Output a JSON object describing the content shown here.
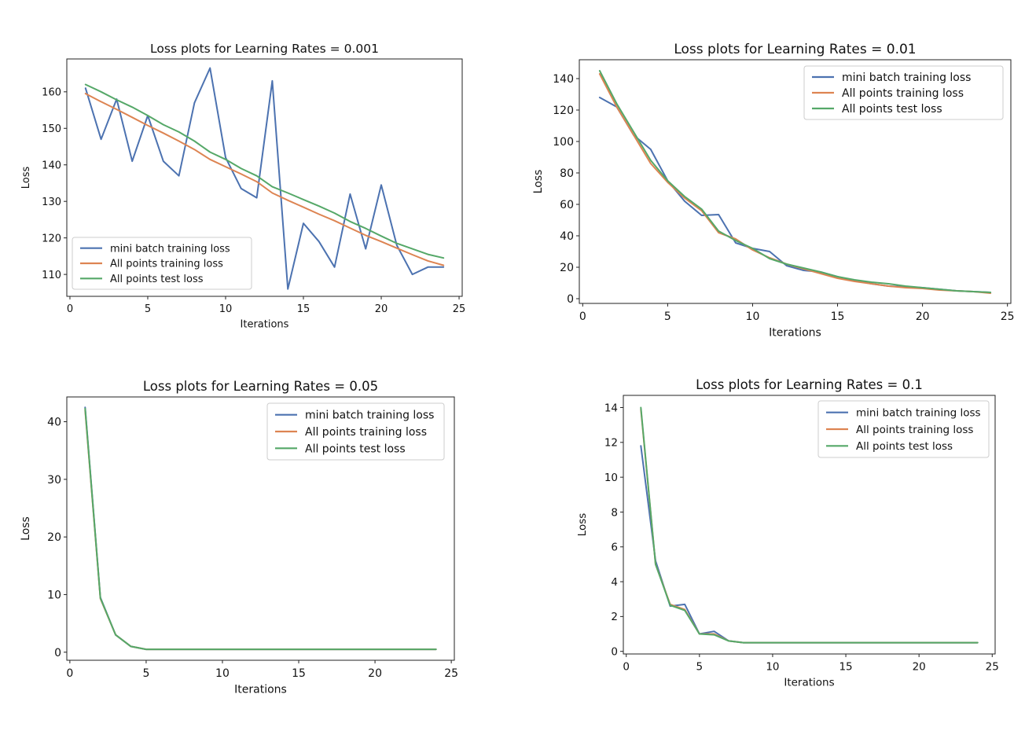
{
  "chart_data": [
    {
      "type": "line",
      "title": "Loss plots for Learning Rates = 0.001",
      "xlabel": "Iterations",
      "ylabel": "Loss",
      "xlim": [
        -0.2,
        25.2
      ],
      "ylim": [
        104,
        169
      ],
      "xticks": [
        0,
        5,
        10,
        15,
        20,
        25
      ],
      "yticks": [
        110,
        120,
        130,
        140,
        150,
        160
      ],
      "legend_loc": "lower-left",
      "grid": false,
      "x": [
        1,
        2,
        3,
        4,
        5,
        6,
        7,
        8,
        9,
        10,
        11,
        12,
        13,
        14,
        15,
        16,
        17,
        18,
        19,
        20,
        21,
        22,
        23,
        24
      ],
      "series": [
        {
          "name": "mini batch training loss",
          "color": "#4c72b0",
          "values": [
            161,
            147,
            158,
            141,
            153.5,
            141,
            137,
            157,
            166.5,
            142,
            133.5,
            131,
            163,
            106,
            124,
            119,
            112,
            132,
            117,
            134.5,
            118,
            110,
            112,
            112
          ]
        },
        {
          "name": "All points training loss",
          "color": "#dd8452",
          "values": [
            159.5,
            157.3,
            155.2,
            153,
            150.8,
            148.7,
            146.5,
            144.2,
            141.5,
            139.5,
            137.5,
            135.4,
            132.3,
            130.3,
            128.4,
            126.5,
            124.7,
            122.7,
            120.7,
            119,
            117.2,
            115.4,
            113.7,
            112.5
          ]
        },
        {
          "name": "All points test loss",
          "color": "#55a868",
          "values": [
            162,
            160,
            157.8,
            155.8,
            153.5,
            151,
            149,
            146.5,
            143.5,
            141.5,
            139,
            137,
            134,
            132.3,
            130.5,
            128.7,
            126.8,
            124.5,
            122.6,
            120.5,
            118.5,
            117,
            115.5,
            114.5
          ]
        }
      ]
    },
    {
      "type": "line",
      "title": "Loss plots for Learning Rates = 0.01",
      "xlabel": "Iterations",
      "ylabel": "Loss",
      "xlim": [
        -0.2,
        25.2
      ],
      "ylim": [
        -3,
        152
      ],
      "xticks": [
        0,
        5,
        10,
        15,
        20,
        25
      ],
      "yticks": [
        0,
        20,
        40,
        60,
        80,
        100,
        120,
        140
      ],
      "legend_loc": "top-right",
      "grid": false,
      "x": [
        1,
        2,
        3,
        4,
        5,
        6,
        7,
        8,
        9,
        10,
        11,
        12,
        13,
        14,
        15,
        16,
        17,
        18,
        19,
        20,
        21,
        22,
        23,
        24
      ],
      "series": [
        {
          "name": "mini batch training loss",
          "color": "#4c72b0",
          "values": [
            128,
            122,
            104,
            95,
            75,
            62,
            53,
            53.5,
            35.5,
            32,
            30,
            21,
            18,
            17,
            14,
            11.5,
            9.5,
            8,
            7.5,
            7,
            6,
            5,
            4.5,
            4
          ]
        },
        {
          "name": "All points training loss",
          "color": "#dd8452",
          "values": [
            143,
            122,
            104,
            86,
            74,
            64,
            56,
            42,
            38,
            31,
            26,
            22,
            19,
            16,
            13,
            11,
            9.5,
            8,
            7,
            6.5,
            5.5,
            5,
            4.5,
            3.5
          ]
        },
        {
          "name": "All points test loss",
          "color": "#55a868",
          "values": [
            145,
            124,
            106,
            88,
            75,
            65,
            57,
            43,
            37,
            32,
            25.5,
            22,
            19.5,
            17,
            14,
            12,
            10.5,
            9.5,
            8,
            7,
            6,
            5,
            4.5,
            4
          ]
        }
      ]
    },
    {
      "type": "line",
      "title": "Loss plots for Learning Rates = 0.05",
      "xlabel": "Iterations",
      "ylabel": "Loss",
      "xlim": [
        -0.2,
        25.2
      ],
      "ylim": [
        -1.4,
        44.3
      ],
      "xticks": [
        0,
        5,
        10,
        15,
        20,
        25
      ],
      "yticks": [
        0,
        10,
        20,
        30,
        40
      ],
      "legend_loc": "top-right",
      "grid": false,
      "x": [
        1,
        2,
        3,
        4,
        5,
        6,
        7,
        8,
        9,
        10,
        11,
        12,
        13,
        14,
        15,
        16,
        17,
        18,
        19,
        20,
        21,
        22,
        23,
        24
      ],
      "series": [
        {
          "name": "mini batch training loss",
          "color": "#4c72b0",
          "values": [
            42.5,
            9.5,
            3,
            1,
            0.5,
            0.5,
            0.5,
            0.5,
            0.5,
            0.5,
            0.5,
            0.5,
            0.5,
            0.5,
            0.5,
            0.5,
            0.5,
            0.5,
            0.5,
            0.5,
            0.5,
            0.5,
            0.5,
            0.5
          ]
        },
        {
          "name": "All points training loss",
          "color": "#dd8452",
          "values": [
            42,
            9.3,
            3,
            1,
            0.5,
            0.5,
            0.5,
            0.5,
            0.5,
            0.5,
            0.5,
            0.5,
            0.5,
            0.5,
            0.5,
            0.5,
            0.5,
            0.5,
            0.5,
            0.5,
            0.5,
            0.5,
            0.5,
            0.5
          ]
        },
        {
          "name": "All points test loss",
          "color": "#55a868",
          "values": [
            42.3,
            9.4,
            3,
            1,
            0.5,
            0.5,
            0.5,
            0.5,
            0.5,
            0.5,
            0.5,
            0.5,
            0.5,
            0.5,
            0.5,
            0.5,
            0.5,
            0.5,
            0.5,
            0.5,
            0.5,
            0.5,
            0.5,
            0.5
          ]
        }
      ]
    },
    {
      "type": "line",
      "title": "Loss plots for Learning Rates = 0.1",
      "xlabel": "Iterations",
      "ylabel": "Loss",
      "xlim": [
        -0.2,
        25.2
      ],
      "ylim": [
        -0.15,
        14.7
      ],
      "xticks": [
        0,
        5,
        10,
        15,
        20,
        25
      ],
      "yticks": [
        0,
        2,
        4,
        6,
        8,
        10,
        12,
        14
      ],
      "legend_loc": "top-right",
      "grid": false,
      "x": [
        1,
        2,
        3,
        4,
        5,
        6,
        7,
        8,
        9,
        10,
        11,
        12,
        13,
        14,
        15,
        16,
        17,
        18,
        19,
        20,
        21,
        22,
        23,
        24
      ],
      "series": [
        {
          "name": "mini batch training loss",
          "color": "#4c72b0",
          "values": [
            11.8,
            5.2,
            2.6,
            2.7,
            1,
            1.15,
            0.6,
            0.5,
            0.5,
            0.5,
            0.5,
            0.5,
            0.5,
            0.5,
            0.5,
            0.5,
            0.5,
            0.5,
            0.5,
            0.5,
            0.5,
            0.5,
            0.5,
            0.5
          ]
        },
        {
          "name": "All points training loss",
          "color": "#dd8452",
          "values": [
            13.9,
            5,
            2.7,
            2.4,
            1,
            1,
            0.6,
            0.5,
            0.5,
            0.5,
            0.5,
            0.5,
            0.5,
            0.5,
            0.5,
            0.5,
            0.5,
            0.5,
            0.5,
            0.5,
            0.5,
            0.5,
            0.5,
            0.5
          ]
        },
        {
          "name": "All points test loss",
          "color": "#55a868",
          "values": [
            14,
            5,
            2.65,
            2.35,
            1,
            0.95,
            0.6,
            0.5,
            0.5,
            0.5,
            0.5,
            0.5,
            0.5,
            0.5,
            0.5,
            0.5,
            0.5,
            0.5,
            0.5,
            0.5,
            0.5,
            0.5,
            0.5,
            0.5
          ]
        }
      ]
    }
  ]
}
